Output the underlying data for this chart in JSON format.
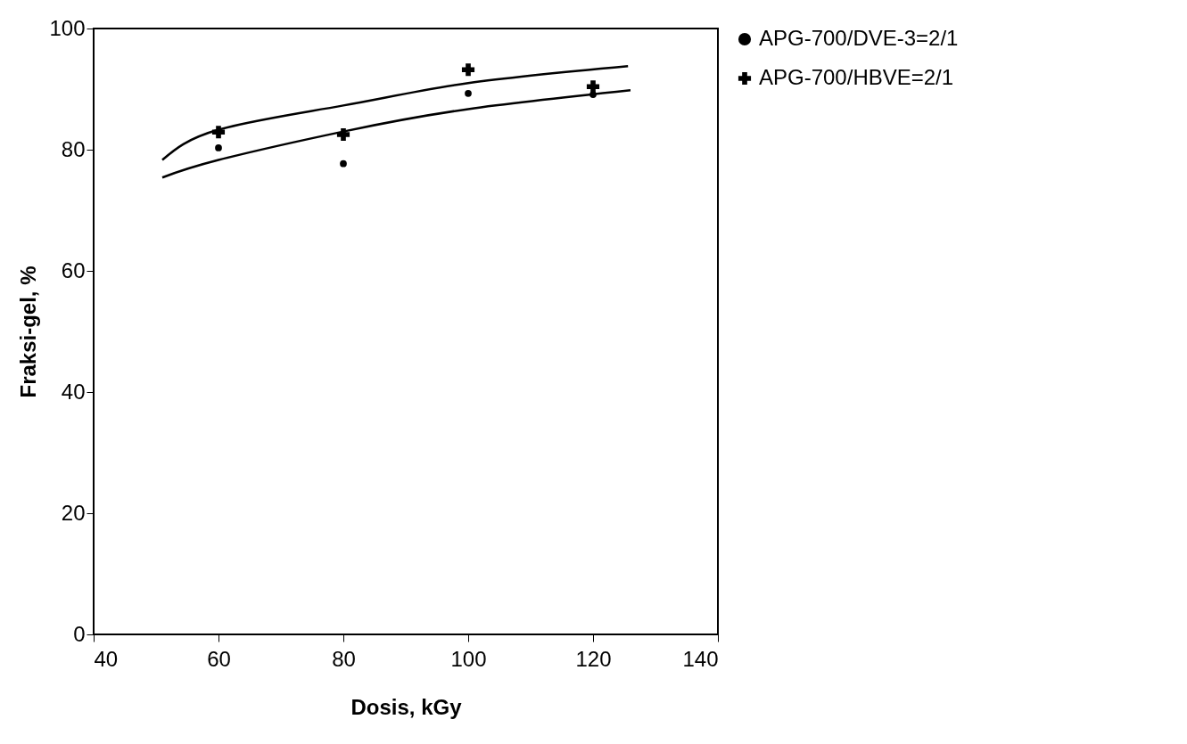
{
  "chart_data": {
    "type": "scatter",
    "xlabel": "Dosis, kGy",
    "ylabel": "Fraksi-gel, %",
    "xlim": [
      40,
      140
    ],
    "xticks": [
      40,
      60,
      80,
      100,
      120,
      140
    ],
    "ylim": [
      0,
      100
    ],
    "yticks": [
      0,
      20,
      40,
      60,
      80,
      100
    ],
    "grid": false,
    "legend": "right",
    "series": [
      {
        "name": "APG-700/DVE-3=2/1",
        "marker": "circle",
        "color": "#000000",
        "x": [
          60,
          80,
          100,
          120
        ],
        "values": [
          80.3,
          77.7,
          89.3,
          89.1
        ]
      },
      {
        "name": "APG-700/HBVE=2/1",
        "marker": "cross",
        "color": "#000000",
        "x": [
          60,
          80,
          100,
          120
        ],
        "values": [
          82.9,
          82.5,
          93.2,
          90.4
        ]
      },
      {
        "type": "line",
        "line_style": "solid",
        "color": "#000000",
        "x": [
          51,
          60,
          80,
          100,
          126
        ],
        "values": [
          75.4,
          78.3,
          83,
          86.7,
          89.8
        ]
      },
      {
        "type": "line",
        "line_style": "solid",
        "color": "#000000",
        "x": [
          51,
          60,
          80,
          100,
          125.6
        ],
        "values": [
          78.3,
          83.3,
          87.3,
          91,
          93.8
        ]
      }
    ]
  }
}
